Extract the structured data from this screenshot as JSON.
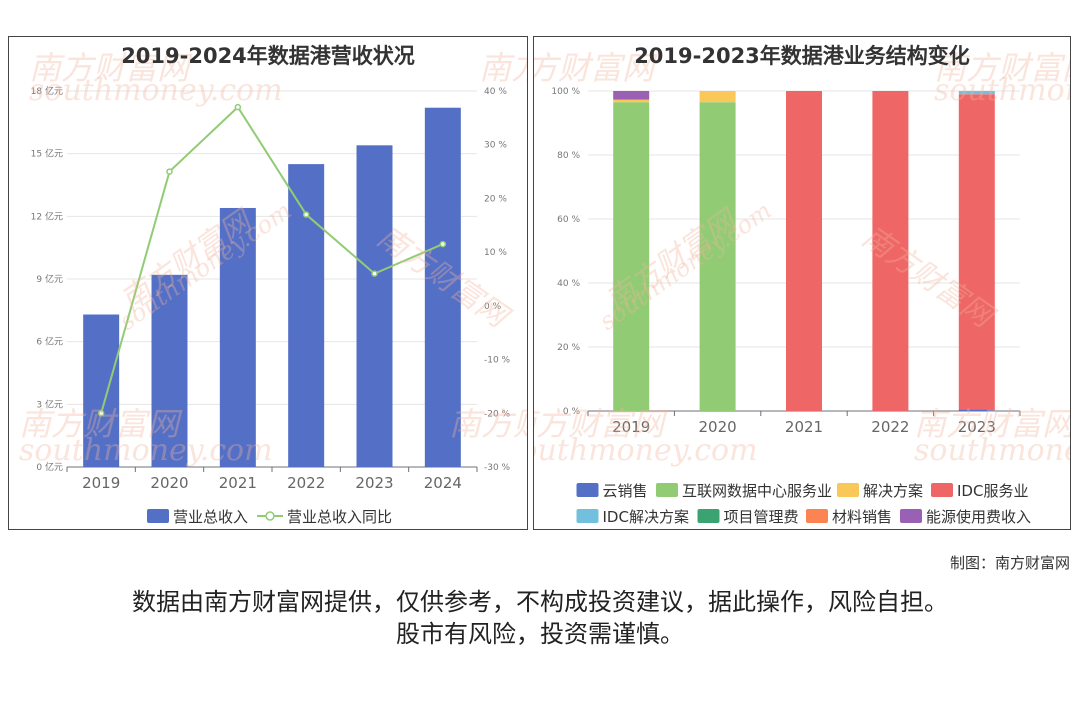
{
  "watermark": {
    "brand": "南方财富网",
    "site": "southmoney.com"
  },
  "credit": "制图：南方财富网",
  "disclaimer": {
    "line1": "数据由南方财富网提供，仅供参考，不构成投资建议，据此操作，风险自担。",
    "line2": "股市有风险，投资需谨慎。"
  },
  "chart_data": [
    {
      "type": "bar+line",
      "title": "2019-2024年数据港营收状况",
      "categories": [
        "2019",
        "2020",
        "2021",
        "2022",
        "2023",
        "2024"
      ],
      "series": [
        {
          "name": "营业总收入",
          "type": "bar",
          "axis": "left",
          "color": "#5470c6",
          "values": [
            7.3,
            9.2,
            12.4,
            14.5,
            15.4,
            17.2
          ]
        },
        {
          "name": "营业总收入同比",
          "type": "line",
          "axis": "right",
          "color": "#91cc75",
          "values": [
            -20.0,
            25.0,
            37.0,
            17.0,
            6.0,
            11.5
          ]
        }
      ],
      "y_left": {
        "min": 0,
        "max": 18,
        "step": 3,
        "unit": "亿元",
        "ticks": [
          "0 亿元",
          "3 亿元",
          "6 亿元",
          "9 亿元",
          "12 亿元",
          "15 亿元",
          "18 亿元"
        ]
      },
      "y_right": {
        "min": -30,
        "max": 40,
        "step": 10,
        "unit": "%",
        "ticks": [
          "-30 %",
          "-20 %",
          "-10 %",
          "0 %",
          "10 %",
          "20 %",
          "30 %",
          "40 %"
        ]
      },
      "grid": true,
      "legend_position": "bottom"
    },
    {
      "type": "stacked_bar",
      "title": "2019-2023年数据港业务结构变化",
      "categories": [
        "2019",
        "2020",
        "2021",
        "2022",
        "2023"
      ],
      "y": {
        "min": 0,
        "max": 100,
        "step": 20,
        "unit": "%",
        "ticks": [
          "0 %",
          "20 %",
          "40 %",
          "60 %",
          "80 %",
          "100 %"
        ]
      },
      "series": [
        {
          "name": "云销售",
          "color": "#5470c6",
          "values": [
            0,
            0,
            0,
            0,
            0.5
          ]
        },
        {
          "name": "互联网数据中心服务业",
          "color": "#91cc75",
          "values": [
            96.5,
            96.5,
            0,
            0,
            0
          ]
        },
        {
          "name": "解决方案",
          "color": "#fac858",
          "values": [
            0.8,
            3.5,
            0,
            0,
            0
          ]
        },
        {
          "name": "IDC服务业",
          "color": "#ee6666",
          "values": [
            0,
            0,
            100,
            100,
            98.5
          ]
        },
        {
          "name": "IDC解决方案",
          "color": "#73c0de",
          "values": [
            0,
            0,
            0,
            0,
            1.0
          ]
        },
        {
          "name": "项目管理费",
          "color": "#3ba272",
          "values": [
            0,
            0,
            0,
            0,
            0
          ]
        },
        {
          "name": "材料销售",
          "color": "#fc8452",
          "values": [
            0,
            0,
            0,
            0,
            0
          ]
        },
        {
          "name": "能源使用费收入",
          "color": "#9a60b4",
          "values": [
            2.7,
            0,
            0,
            0,
            0
          ]
        }
      ],
      "grid": true,
      "legend_position": "bottom"
    }
  ]
}
